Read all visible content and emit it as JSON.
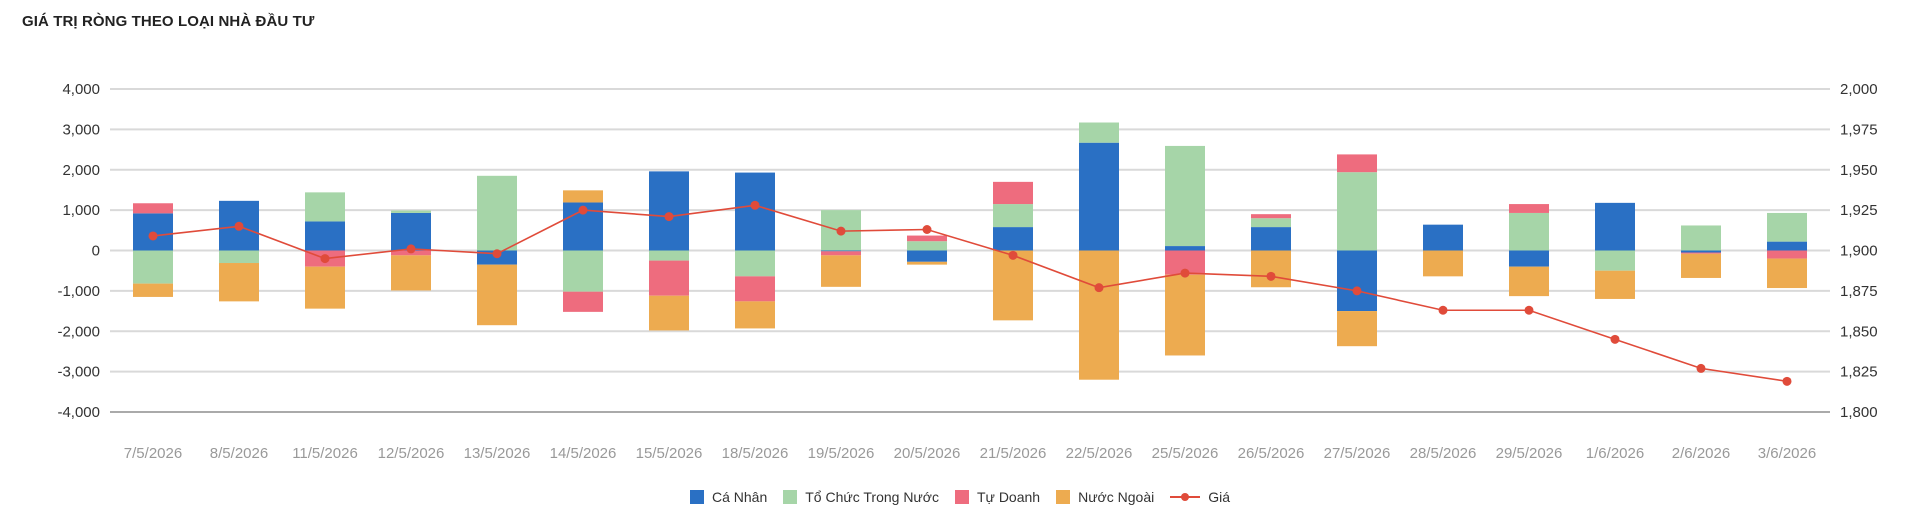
{
  "title": "GIÁ TRỊ RÒNG THEO LOẠI NHÀ ĐẦU TƯ",
  "legend": {
    "ca_nhan": "Cá Nhân",
    "to_chuc": "Tổ Chức Trong Nước",
    "tu_doanh": "Tự Doanh",
    "nuoc_ngoai": "Nước Ngoài",
    "gia": "Giá"
  },
  "colors": {
    "ca_nhan": "#2a70c4",
    "to_chuc": "#a6d5a8",
    "tu_doanh": "#ee6c7e",
    "nuoc_ngoai": "#edab50",
    "gia": "#e04b3a",
    "grid": "#d9d9d9",
    "tick": "#333333",
    "xtick": "#999999"
  },
  "chart_data": {
    "type": "bar",
    "stacked": true,
    "categories": [
      "7/5/2026",
      "8/5/2026",
      "11/5/2026",
      "12/5/2026",
      "13/5/2026",
      "14/5/2026",
      "15/5/2026",
      "18/5/2026",
      "19/5/2026",
      "20/5/2026",
      "21/5/2026",
      "22/5/2026",
      "25/5/2026",
      "26/5/2026",
      "27/5/2026",
      "28/5/2026",
      "29/5/2026",
      "1/6/2026",
      "2/6/2026",
      "3/6/2026"
    ],
    "ylim": [
      -4000,
      4000
    ],
    "yticks": [
      4000,
      3000,
      2000,
      1000,
      0,
      -1000,
      -2000,
      -3000,
      -4000
    ],
    "ytick_labels": [
      "4,000",
      "3,000",
      "2,000",
      "1,000",
      "0",
      "-1,000",
      "-2,000",
      "-3,000",
      "-4,000"
    ],
    "y2lim": [
      1800,
      2000
    ],
    "y2ticks": [
      2000,
      1975,
      1950,
      1925,
      1900,
      1875,
      1850,
      1825,
      1800
    ],
    "y2tick_labels": [
      "2,000",
      "1,975",
      "1,950",
      "1,925",
      "1,900",
      "1,875",
      "1,850",
      "1,825",
      "1,800"
    ],
    "grid": true,
    "legend_position": "bottom",
    "series": [
      {
        "key": "ca_nhan",
        "name": "Cá Nhân",
        "values": [
          920,
          1230,
          720,
          930,
          -350,
          1190,
          1960,
          1930,
          -20,
          -280,
          580,
          2670,
          110,
          580,
          -1500,
          640,
          -400,
          1180,
          -50,
          220
        ]
      },
      {
        "key": "to_chuc",
        "name": "Tổ Chức Trong Nước",
        "values": [
          -820,
          -310,
          720,
          60,
          1850,
          -1020,
          -250,
          -640,
          1000,
          230,
          570,
          500,
          2480,
          220,
          1940,
          0,
          930,
          -500,
          620,
          710
        ]
      },
      {
        "key": "tu_doanh",
        "name": "Tự Doanh",
        "values": [
          250,
          0,
          -400,
          -120,
          0,
          -500,
          -870,
          -620,
          -100,
          140,
          550,
          0,
          -600,
          100,
          440,
          0,
          220,
          0,
          -30,
          -200
        ]
      },
      {
        "key": "nuoc_ngoai",
        "name": "Nước Ngoài",
        "values": [
          -330,
          -950,
          -1040,
          -870,
          -1500,
          300,
          -860,
          -670,
          -780,
          -70,
          -1730,
          -3200,
          -2000,
          -910,
          -870,
          -640,
          -730,
          -700,
          -600,
          -730
        ]
      }
    ],
    "line": {
      "key": "gia",
      "name": "Giá",
      "axis": "right",
      "values": [
        1909,
        1915,
        1895,
        1901,
        1898,
        1925,
        1921,
        1928,
        1912,
        1913,
        1897,
        1877,
        1886,
        1884,
        1875,
        1863,
        1863,
        1845,
        1827,
        1819
      ]
    }
  }
}
